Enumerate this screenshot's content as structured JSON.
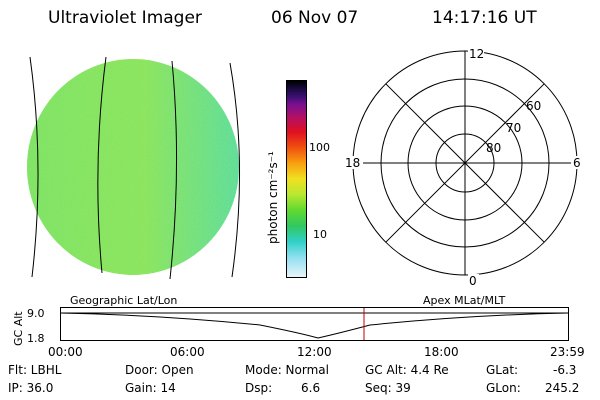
{
  "header": {
    "title": "Ultraviolet Imager",
    "date": "06 Nov 07",
    "time": "14:17:16 UT"
  },
  "colorbar": {
    "unit_label": "photon cm⁻²s⁻¹",
    "ticks": [
      "100",
      "10"
    ]
  },
  "polar": {
    "mlt_labels": {
      "top": "12",
      "left": "18",
      "right": "6",
      "bottom": "0"
    },
    "mlat_labels": [
      "80",
      "70",
      "60"
    ]
  },
  "timeline": {
    "axis_label": "GC Alt",
    "alt_max": "9.0",
    "alt_min": "1.8",
    "left_label": "Geographic Lat/Lon",
    "right_label": "Apex MLat/MLT",
    "time_ticks": [
      "00:00",
      "06:00",
      "12:00",
      "18:00",
      "23:59"
    ]
  },
  "status": {
    "filter": "Flt: LBHL",
    "ip": "IP: 36.0",
    "door": "Door: Open",
    "gain": "Gain: 14",
    "mode": "Mode: Normal",
    "dsp_label": "Dsp:",
    "dsp_value": "6.6",
    "gc_alt": "GC Alt: 4.4 Re",
    "seq": "Seq: 39",
    "glat_label": "GLat:",
    "glat_value": "-6.3",
    "glon_label": "GLon:",
    "glon_value": "245.2"
  }
}
